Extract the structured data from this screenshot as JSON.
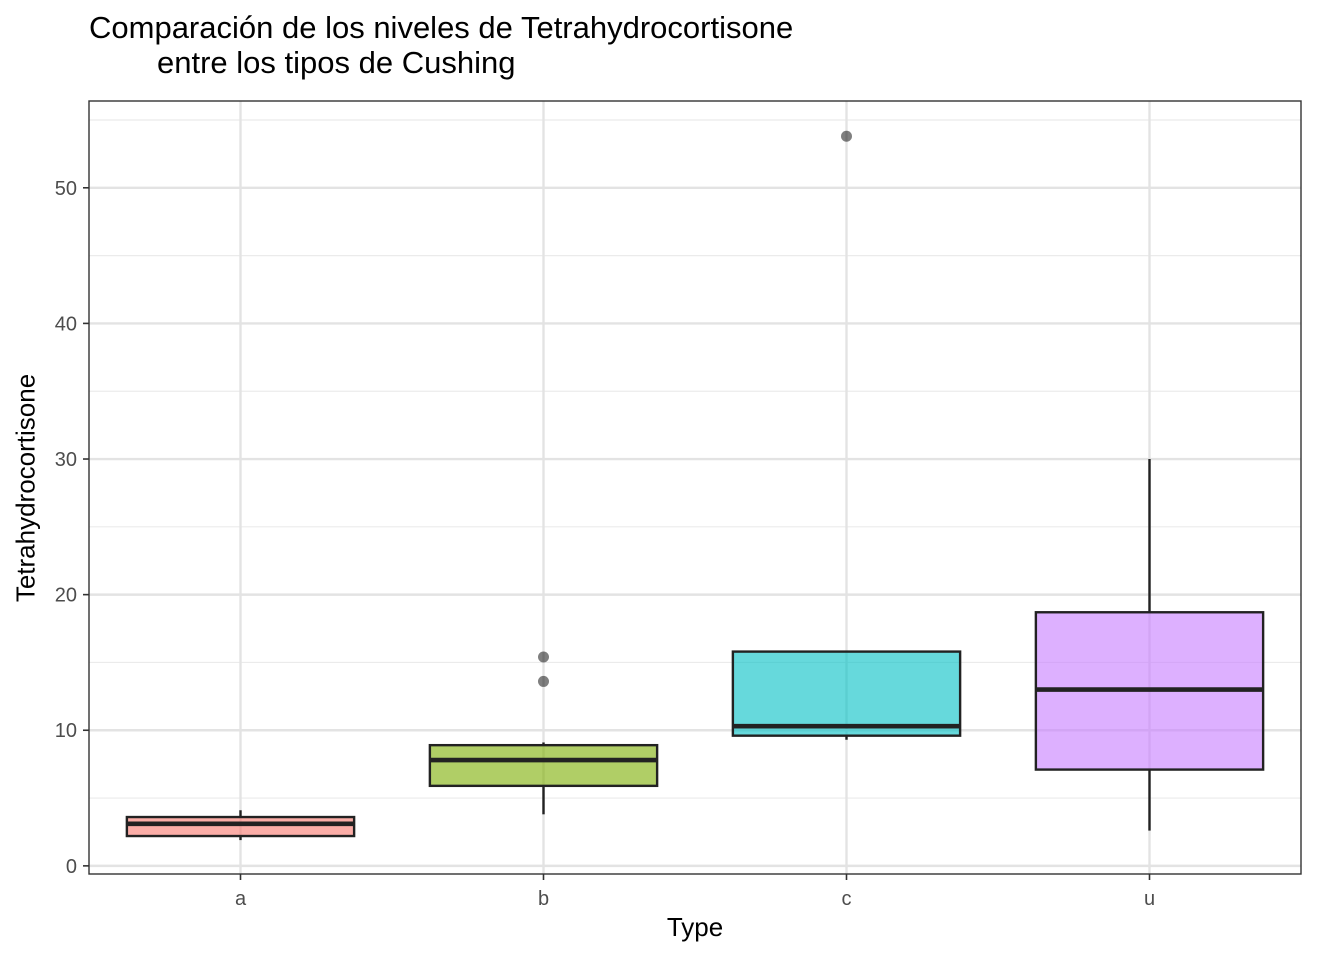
{
  "chart_data": {
    "type": "boxplot",
    "title_line1": "Comparación de los niveles de Tetrahydrocortisone",
    "title_line2": "entre los tipos de Cushing",
    "xlabel": "Type",
    "ylabel": "Tetrahydrocortisone",
    "ylim": [
      -0.6,
      56.4
    ],
    "yticks": [
      0,
      10,
      20,
      30,
      40,
      50
    ],
    "ytick_labels": [
      "0",
      "10",
      "20",
      "30",
      "40",
      "50"
    ],
    "yminor": [
      5,
      15,
      25,
      35,
      45,
      55
    ],
    "categories": [
      "a",
      "b",
      "c",
      "u"
    ],
    "boxes": [
      {
        "category": "a",
        "min": 1.9,
        "q1": 2.2,
        "median": 3.1,
        "q3": 3.6,
        "max": 4.1,
        "outliers": [],
        "color": "#F8766D"
      },
      {
        "category": "b",
        "min": 3.8,
        "q1": 5.9,
        "median": 7.8,
        "q3": 8.9,
        "max": 9.1,
        "outliers": [
          13.6,
          15.4
        ],
        "color": "#7CAE00"
      },
      {
        "category": "c",
        "min": 9.3,
        "q1": 9.6,
        "median": 10.3,
        "q3": 15.8,
        "max": 15.8,
        "outliers": [
          53.8
        ],
        "color": "#00BFC4"
      },
      {
        "category": "u",
        "min": 2.6,
        "q1": 7.1,
        "median": 13.0,
        "q3": 18.7,
        "max": 30.0,
        "outliers": [],
        "color": "#C77CFF"
      }
    ],
    "fill_opacity": 0.6,
    "grid": true,
    "legend": "none"
  }
}
